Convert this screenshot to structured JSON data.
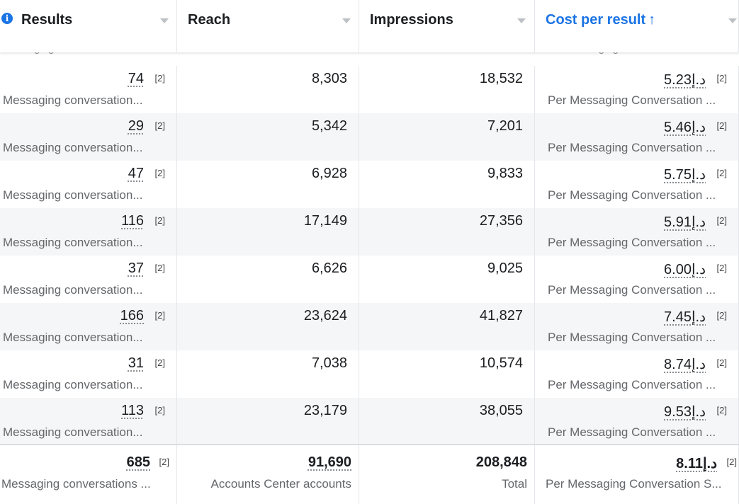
{
  "columns": {
    "results": "Results",
    "reach": "Reach",
    "impressions": "Impressions",
    "cost_per_result": "Cost per result",
    "sort_indicator": "↑"
  },
  "cut_row": {
    "results_sub": "Messaging Conversation St...",
    "cost_sub": "Per Messaging Conversation St..."
  },
  "rows": [
    {
      "results": "74",
      "reach": "8,303",
      "impressions": "18,532",
      "cost": "د.إ5.23"
    },
    {
      "results": "29",
      "reach": "5,342",
      "impressions": "7,201",
      "cost": "د.إ5.46"
    },
    {
      "results": "47",
      "reach": "6,928",
      "impressions": "9,833",
      "cost": "د.إ5.75"
    },
    {
      "results": "116",
      "reach": "17,149",
      "impressions": "27,356",
      "cost": "د.إ5.91"
    },
    {
      "results": "37",
      "reach": "6,626",
      "impressions": "9,025",
      "cost": "د.إ6.00"
    },
    {
      "results": "166",
      "reach": "23,624",
      "impressions": "41,827",
      "cost": "د.إ7.45"
    },
    {
      "results": "31",
      "reach": "7,038",
      "impressions": "10,574",
      "cost": "د.إ8.74"
    },
    {
      "results": "113",
      "reach": "23,179",
      "impressions": "38,055",
      "cost": "د.إ9.53"
    }
  ],
  "row_labels": {
    "ref": "[2]",
    "results_sub": "Messaging conversation...",
    "cost_sub": "Per Messaging Conversation ..."
  },
  "totals": {
    "results": "685",
    "results_ref": "[2]",
    "results_sub": "Messaging conversations ...",
    "reach": "91,690",
    "reach_sub": "Accounts Center accounts",
    "impressions": "208,848",
    "impressions_sub": "Total",
    "cost": "د.إ8.11",
    "cost_ref": "[2]",
    "cost_sub": "Per Messaging Conversation S..."
  },
  "icons": {
    "info": "info-icon",
    "caret": "chevron-down-icon"
  },
  "colors": {
    "accent": "#1b74e4",
    "text": "#1c1e21",
    "muted": "#65676b",
    "alt_row": "#f5f6f7"
  }
}
